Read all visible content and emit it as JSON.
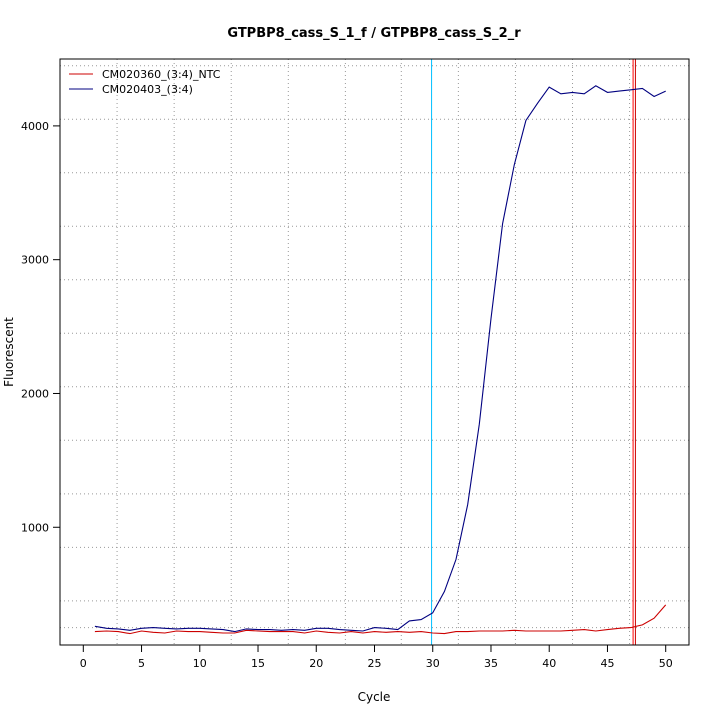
{
  "chart_data": {
    "type": "line",
    "title": "GTPBP8_cass_S_1_f / GTPBP8_cass_S_2_r",
    "xlabel": "Cycle",
    "ylabel": "Fluorescent",
    "xlim": [
      -2,
      52
    ],
    "ylim": [
      120,
      4500
    ],
    "x_ticks": [
      0,
      5,
      10,
      15,
      20,
      25,
      30,
      35,
      40,
      45,
      50
    ],
    "y_ticks": [
      1000,
      2000,
      3000,
      4000
    ],
    "grid": true,
    "legend_position": "top-left",
    "x_grid": [
      2.9,
      7.8,
      12.7,
      17.6,
      22.5,
      27.3,
      32.2,
      37.1,
      42.0,
      46.9
    ],
    "y_grid": [
      250,
      450,
      850,
      1250,
      1650,
      2050,
      2450,
      2850,
      3250,
      3650,
      4050,
      4450
    ],
    "vertical_lines": [
      {
        "x": 29.9,
        "color": "#00bfff"
      },
      {
        "x": 47.2,
        "color": "#ff0000"
      },
      {
        "x": 47.4,
        "color": "#cc0000"
      }
    ],
    "x": [
      1,
      2,
      3,
      4,
      5,
      6,
      7,
      8,
      9,
      10,
      11,
      12,
      13,
      14,
      15,
      16,
      17,
      18,
      19,
      20,
      21,
      22,
      23,
      24,
      25,
      26,
      27,
      28,
      29,
      30,
      31,
      32,
      33,
      34,
      35,
      36,
      37,
      38,
      39,
      40,
      41,
      42,
      43,
      44,
      45,
      46,
      47,
      48,
      49,
      50
    ],
    "series": [
      {
        "name": "CM020360_(3:4)_NTC",
        "color": "#cc0000",
        "values": [
          220,
          225,
          220,
          205,
          225,
          215,
          210,
          225,
          220,
          220,
          215,
          210,
          210,
          230,
          225,
          220,
          220,
          220,
          210,
          225,
          215,
          210,
          220,
          210,
          220,
          215,
          220,
          215,
          220,
          210,
          205,
          220,
          220,
          225,
          225,
          225,
          230,
          225,
          225,
          225,
          225,
          230,
          235,
          225,
          235,
          245,
          250,
          270,
          320,
          420
        ]
      },
      {
        "name": "CM020403_(3:4)",
        "color": "#000080",
        "values": [
          260,
          245,
          240,
          230,
          245,
          250,
          245,
          240,
          245,
          245,
          240,
          235,
          220,
          240,
          235,
          235,
          230,
          235,
          230,
          245,
          245,
          235,
          230,
          225,
          250,
          245,
          235,
          300,
          310,
          360,
          520,
          760,
          1170,
          1770,
          2560,
          3270,
          3710,
          4040,
          4170,
          4290,
          4240,
          4250,
          4240,
          4300,
          4250,
          4260,
          4270,
          4280,
          4220,
          4260
        ]
      }
    ]
  }
}
